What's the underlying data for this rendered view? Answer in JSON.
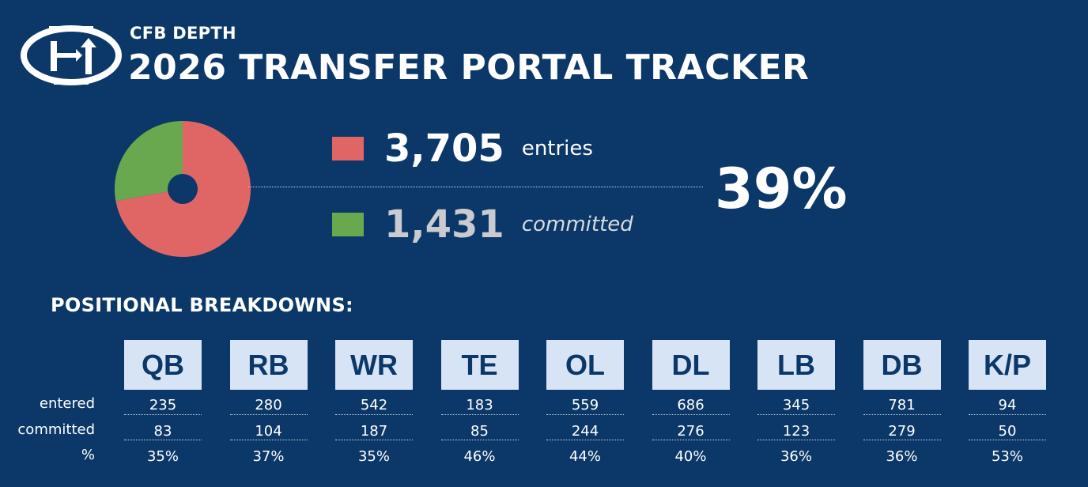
{
  "header": {
    "brand": "CFB DEPTH",
    "title": "2026 TRANSFER PORTAL TRACKER"
  },
  "summary": {
    "entries_value": "3,705",
    "entries_label": "entries",
    "committed_value": "1,431",
    "committed_label": "committed",
    "percent": "39%"
  },
  "section_title": "POSITIONAL BREAKDOWNS:",
  "row_labels": [
    "entered",
    "committed",
    "%"
  ],
  "colors": {
    "background": "#0b3868",
    "entries": "#e06666",
    "committed": "#6aa84f",
    "position_box": "#d6e4f5"
  },
  "chart_data": [
    {
      "type": "pie",
      "style": "donut",
      "slices": [
        {
          "label": "entries",
          "value": 3705,
          "color": "#e06666"
        },
        {
          "label": "committed",
          "value": 1431,
          "color": "#6aa84f"
        }
      ]
    },
    {
      "type": "table",
      "columns": [
        "QB",
        "RB",
        "WR",
        "TE",
        "OL",
        "DL",
        "LB",
        "DB",
        "K/P"
      ],
      "rows": [
        {
          "label": "entered",
          "values": [
            "235",
            "280",
            "542",
            "183",
            "559",
            "686",
            "345",
            "781",
            "94"
          ]
        },
        {
          "label": "committed",
          "values": [
            "83",
            "104",
            "187",
            "85",
            "244",
            "276",
            "123",
            "279",
            "50"
          ]
        },
        {
          "label": "%",
          "values": [
            "35%",
            "37%",
            "35%",
            "46%",
            "44%",
            "40%",
            "36%",
            "36%",
            "53%"
          ]
        }
      ]
    }
  ]
}
